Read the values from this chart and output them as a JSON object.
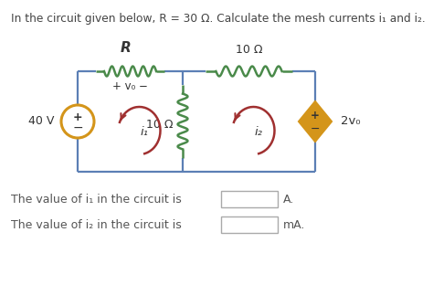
{
  "title_text": "In the circuit given below, R = 30 Ω. Calculate the mesh currents i₁ and i₂.",
  "bg_color": "#ffffff",
  "wire_color": "#5b7fb5",
  "resistor_color": "#4a8a4a",
  "mesh_arrow_color": "#a03030",
  "source_color": "#d4951a",
  "label_R": "R",
  "label_10ohm_top": "10 Ω",
  "label_10ohm_mid": "10 Ω",
  "label_vb": "+ v₀ −",
  "label_40V": "40 V",
  "label_i1": "i₁",
  "label_i2": "i₂",
  "label_2vb": "2v₀",
  "answer_line1": "The value of i₁ in the circuit is",
  "answer_line2": "The value of i₂ in the circuit is",
  "answer_unit1": "A.",
  "answer_unit2": "mA."
}
